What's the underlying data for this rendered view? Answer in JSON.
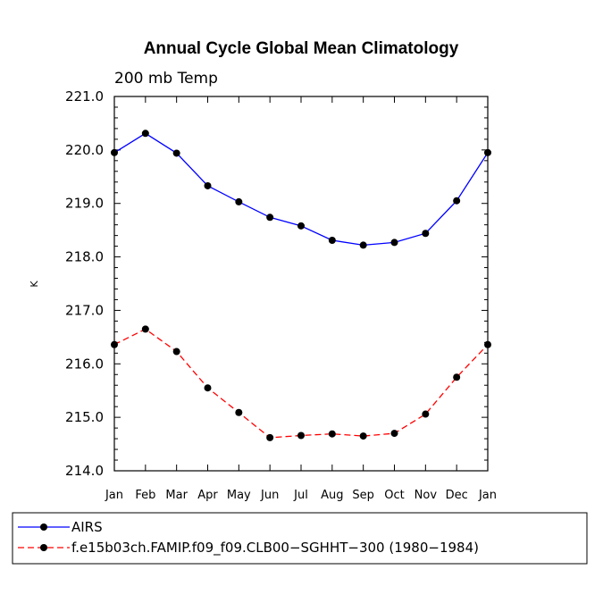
{
  "chart_data": {
    "type": "line",
    "title": "Annual Cycle Global Mean Climatology",
    "subtitle": "200 mb Temp",
    "xlabel": "",
    "ylabel": "K",
    "categories": [
      "Jan",
      "Feb",
      "Mar",
      "Apr",
      "May",
      "Jun",
      "Jul",
      "Aug",
      "Sep",
      "Oct",
      "Nov",
      "Dec",
      "Jan"
    ],
    "ylim": [
      214.0,
      221.0
    ],
    "yticks": [
      "214.0",
      "215.0",
      "216.0",
      "217.0",
      "218.0",
      "219.0",
      "220.0",
      "221.0"
    ],
    "legend_position": "bottom-left",
    "grid": false,
    "series": [
      {
        "name": "AIRS",
        "color": "#0000ff",
        "style": "solid",
        "values": [
          219.95,
          220.31,
          219.94,
          219.33,
          219.03,
          218.74,
          218.58,
          218.31,
          218.22,
          218.27,
          218.44,
          219.05,
          219.95
        ]
      },
      {
        "name": "f.e15b03ch.FAMIP.f09_f09.CLB00−SGHHT−300 (1980−1984)",
        "color": "#ff0000",
        "style": "dashed",
        "values": [
          216.36,
          216.65,
          216.23,
          215.55,
          215.09,
          214.62,
          214.66,
          214.69,
          214.65,
          214.7,
          215.06,
          215.75,
          216.36
        ]
      }
    ]
  }
}
